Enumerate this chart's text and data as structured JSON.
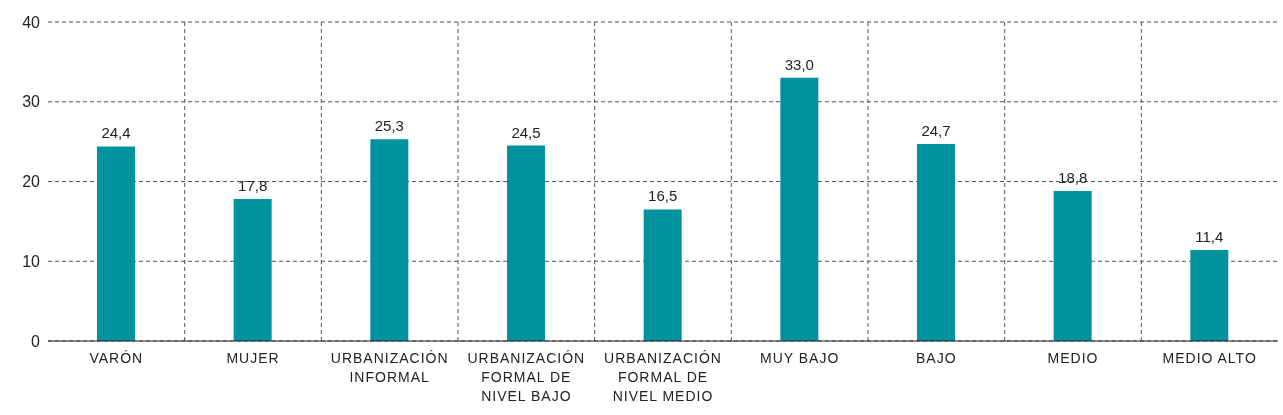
{
  "chart_data": {
    "type": "bar",
    "categories": [
      "VARÓN",
      "MUJER",
      "URBANIZACIÓN INFORMAL",
      "URBANIZACIÓN FORMAL DE NIVEL BAJO",
      "URBANIZACIÓN FORMAL DE NIVEL MEDIO",
      "MUY BAJO",
      "BAJO",
      "MEDIO",
      "MEDIO ALTO"
    ],
    "values": [
      24.4,
      17.8,
      25.3,
      24.5,
      16.5,
      33.0,
      24.7,
      18.8,
      11.4
    ],
    "value_labels": [
      "24,4",
      "17,8",
      "25,3",
      "24,5",
      "16,5",
      "33,0",
      "24,7",
      "18,8",
      "11,4"
    ],
    "color": "#00939f",
    "ylim": [
      0,
      40
    ],
    "yticks": [
      0,
      10,
      20,
      30,
      40
    ],
    "grid": true
  }
}
